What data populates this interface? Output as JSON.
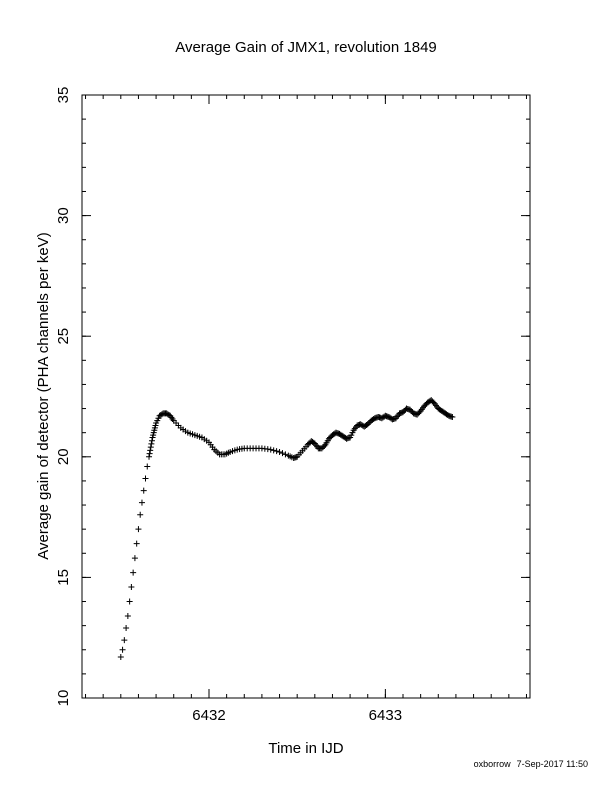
{
  "chart_data": {
    "type": "scatter",
    "title": "Average Gain of JMX1, revolution 1849",
    "xlabel": "Time in IJD",
    "ylabel": "Average gain of detector (PHA channels per keV)",
    "xlim": [
      6431.28,
      6433.82
    ],
    "ylim": [
      10,
      35
    ],
    "xticks_major": [
      6432,
      6433
    ],
    "yticks_major": [
      10,
      15,
      20,
      25,
      30,
      35
    ],
    "xtick_minor_step": 0.1,
    "ytick_minor_step": 1,
    "grid": false,
    "marker": "plus",
    "series": [
      {
        "points": [
          [
            6431.5,
            11.7
          ],
          [
            6431.51,
            12.0
          ],
          [
            6431.52,
            12.4
          ],
          [
            6431.53,
            12.9
          ],
          [
            6431.54,
            13.4
          ],
          [
            6431.55,
            14.0
          ],
          [
            6431.56,
            14.6
          ],
          [
            6431.57,
            15.2
          ],
          [
            6431.58,
            15.8
          ],
          [
            6431.59,
            16.4
          ],
          [
            6431.6,
            17.0
          ],
          [
            6431.61,
            17.6
          ],
          [
            6431.62,
            18.1
          ],
          [
            6431.63,
            18.6
          ],
          [
            6431.64,
            19.1
          ],
          [
            6431.65,
            19.6
          ],
          [
            6431.66,
            20.0
          ],
          [
            6431.67,
            20.4
          ],
          [
            6431.68,
            20.8
          ],
          [
            6431.69,
            21.1
          ],
          [
            6431.7,
            21.4
          ],
          [
            6431.72,
            21.7
          ],
          [
            6431.74,
            21.8
          ],
          [
            6431.76,
            21.8
          ],
          [
            6431.78,
            21.7
          ],
          [
            6431.8,
            21.5
          ],
          [
            6431.84,
            21.2
          ],
          [
            6431.88,
            21.0
          ],
          [
            6431.92,
            20.9
          ],
          [
            6431.96,
            20.8
          ],
          [
            6432.0,
            20.6
          ],
          [
            6432.03,
            20.3
          ],
          [
            6432.06,
            20.1
          ],
          [
            6432.09,
            20.1
          ],
          [
            6432.12,
            20.2
          ],
          [
            6432.16,
            20.3
          ],
          [
            6432.2,
            20.35
          ],
          [
            6432.25,
            20.35
          ],
          [
            6432.3,
            20.35
          ],
          [
            6432.35,
            20.3
          ],
          [
            6432.4,
            20.2
          ],
          [
            6432.45,
            20.05
          ],
          [
            6432.48,
            19.95
          ],
          [
            6432.5,
            20.0
          ],
          [
            6432.53,
            20.25
          ],
          [
            6432.56,
            20.5
          ],
          [
            6432.58,
            20.65
          ],
          [
            6432.6,
            20.55
          ],
          [
            6432.62,
            20.35
          ],
          [
            6432.64,
            20.35
          ],
          [
            6432.66,
            20.5
          ],
          [
            6432.68,
            20.75
          ],
          [
            6432.7,
            20.9
          ],
          [
            6432.72,
            21.0
          ],
          [
            6432.74,
            20.95
          ],
          [
            6432.76,
            20.85
          ],
          [
            6432.78,
            20.75
          ],
          [
            6432.8,
            20.8
          ],
          [
            6432.82,
            21.1
          ],
          [
            6432.84,
            21.3
          ],
          [
            6432.86,
            21.35
          ],
          [
            6432.88,
            21.25
          ],
          [
            6432.9,
            21.35
          ],
          [
            6432.92,
            21.5
          ],
          [
            6432.94,
            21.6
          ],
          [
            6432.96,
            21.65
          ],
          [
            6432.98,
            21.6
          ],
          [
            6433.0,
            21.7
          ],
          [
            6433.02,
            21.65
          ],
          [
            6433.04,
            21.55
          ],
          [
            6433.06,
            21.6
          ],
          [
            6433.08,
            21.8
          ],
          [
            6433.1,
            21.85
          ],
          [
            6433.12,
            22.0
          ],
          [
            6433.14,
            21.95
          ],
          [
            6433.16,
            21.8
          ],
          [
            6433.18,
            21.75
          ],
          [
            6433.2,
            21.9
          ],
          [
            6433.22,
            22.1
          ],
          [
            6433.24,
            22.25
          ],
          [
            6433.26,
            22.35
          ],
          [
            6433.28,
            22.2
          ],
          [
            6433.3,
            22.0
          ],
          [
            6433.32,
            21.9
          ],
          [
            6433.34,
            21.8
          ],
          [
            6433.36,
            21.7
          ],
          [
            6433.38,
            21.65
          ]
        ]
      }
    ]
  },
  "footer": {
    "user": "oxborrow",
    "timestamp": "7-Sep-2017 11:50"
  }
}
